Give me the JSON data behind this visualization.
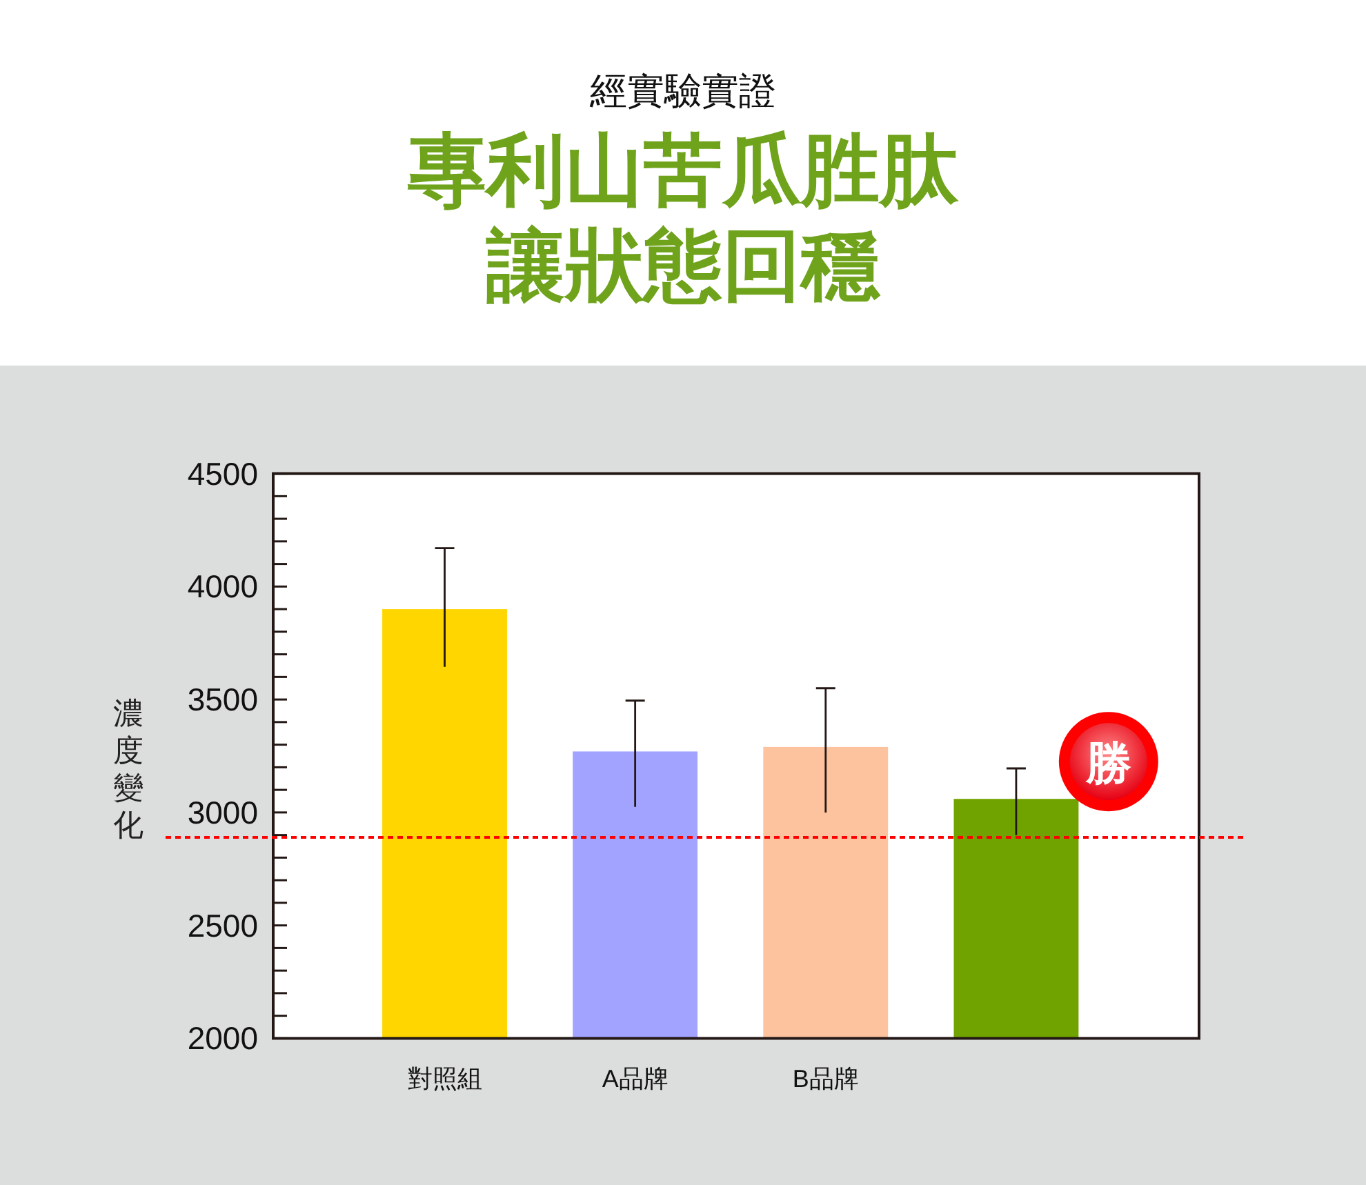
{
  "chart_data": {
    "type": "bar",
    "subtitle": "經實驗實證",
    "title": "專利山苦瓜胜肽讓狀態回穩",
    "ylabel": "濃度變化",
    "categories": [
      "對照組",
      "A品牌",
      "B品牌",
      null
    ],
    "values": [
      3900,
      3270,
      3290,
      3060
    ],
    "colors": [
      "#ffd600",
      "#a1a3ff",
      "#fdc29e",
      "#71a300"
    ],
    "errors": [
      [
        3645,
        4170
      ],
      [
        3025,
        3495
      ],
      [
        3000,
        3550
      ],
      [
        2900,
        3195
      ]
    ],
    "ylim": [
      2000,
      4500
    ],
    "yticks": [
      2000,
      {
        "value": 2100,
        "label": null
      },
      {
        "value": 2200,
        "label": null
      },
      {
        "value": 2300,
        "label": null
      },
      {
        "value": 2400,
        "label": null
      },
      2500,
      {
        "value": 2600,
        "label": null
      },
      {
        "value": 2700,
        "label": null
      },
      {
        "value": 2800,
        "label": null
      },
      {
        "value": 2900,
        "label": null
      },
      3000,
      {
        "value": 3100,
        "label": null
      },
      {
        "value": 3200,
        "label": null
      },
      {
        "value": 3300,
        "label": null
      },
      {
        "value": 3400,
        "label": null
      },
      3500,
      {
        "value": 3600,
        "label": null
      },
      {
        "value": 3700,
        "label": null
      },
      {
        "value": 3800,
        "label": null
      },
      {
        "value": 3900,
        "label": null
      },
      4000,
      {
        "value": 4100,
        "label": null
      },
      {
        "value": 4200,
        "label": null
      },
      {
        "value": 4300,
        "label": null
      },
      {
        "value": 4400,
        "label": null
      },
      4500
    ],
    "ref_lines": [
      {
        "axis": "y",
        "value": 2890,
        "color": "#ff0000",
        "line_style": "dotted"
      }
    ],
    "annotations": [
      "勝"
    ]
  }
}
